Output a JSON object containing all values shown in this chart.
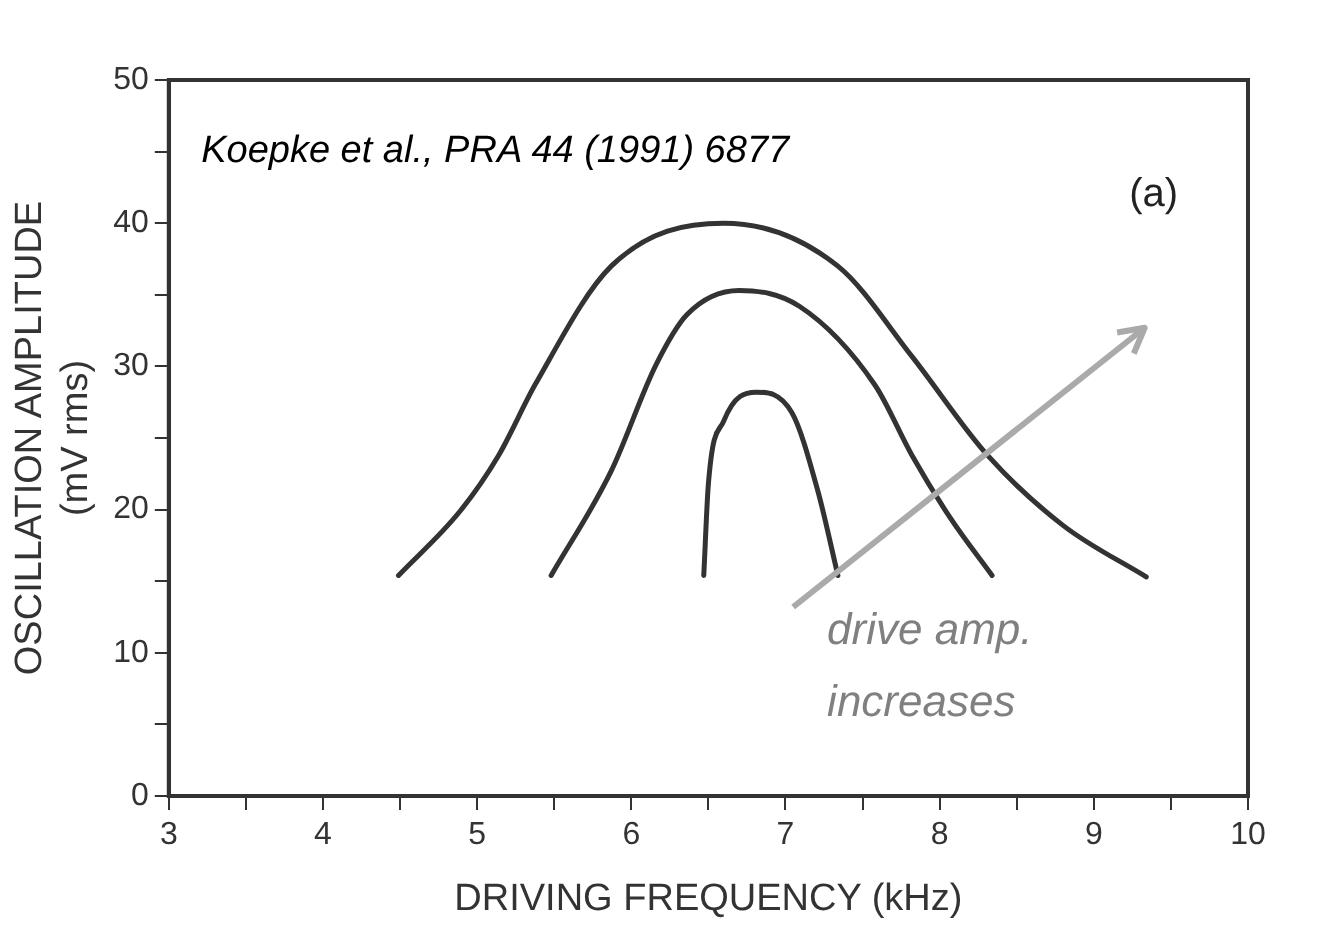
{
  "chart_data": {
    "type": "line",
    "xlabel": "DRIVING FREQUENCY (kHz)",
    "ylabel": "OSCILLATION AMPLITUDE\n(mV rms)",
    "xlim": [
      3,
      10
    ],
    "ylim": [
      0,
      50
    ],
    "xticks": [
      3,
      {
        "value": 3.5,
        "label": null
      },
      4,
      {
        "value": 4.5,
        "label": null
      },
      5,
      {
        "value": 5.5,
        "label": null
      },
      6,
      {
        "value": 6.5,
        "label": null
      },
      7,
      {
        "value": 7.5,
        "label": null
      },
      8,
      {
        "value": 8.5,
        "label": null
      },
      9,
      {
        "value": 9.5,
        "label": null
      },
      10
    ],
    "yticks": [
      0,
      {
        "value": 5,
        "label": null
      },
      10,
      {
        "value": 15,
        "label": null
      },
      20,
      {
        "value": 25,
        "label": null
      },
      30,
      {
        "value": 35,
        "label": null
      },
      40,
      {
        "value": 45,
        "label": null
      },
      50
    ],
    "grid": false,
    "legend": false,
    "marker": "none",
    "line_style": "solid",
    "series": [
      {
        "color": "#333333",
        "x": [
          4.49,
          4.89,
          5.14,
          5.38,
          5.87,
          6.6,
          7.34,
          7.82,
          8.31,
          8.8,
          9.34
        ],
        "values": [
          15.4,
          19.9,
          23.8,
          28.8,
          37,
          40,
          37,
          30.7,
          23.8,
          18.9,
          15.3
        ]
      },
      {
        "color": "#333333",
        "x": [
          5.48,
          5.87,
          6.16,
          6.36,
          6.7,
          7.09,
          7.58,
          7.82,
          8.07,
          8.34
        ],
        "values": [
          15.4,
          22.7,
          30.1,
          33.6,
          35.3,
          34.2,
          28.7,
          23.8,
          19.4,
          15.4
        ]
      },
      {
        "color": "#333333",
        "x": [
          6.47,
          6.5,
          6.6,
          6.81,
          7.04,
          7.21,
          7.34
        ],
        "values": [
          15.4,
          21.8,
          26.2,
          28.2,
          26.8,
          21.3,
          15.4
        ]
      }
    ],
    "annotations": [
      "Koepke et al., PRA 44 (1991) 6877",
      "(a)",
      "drive amp.\nincreases"
    ]
  }
}
